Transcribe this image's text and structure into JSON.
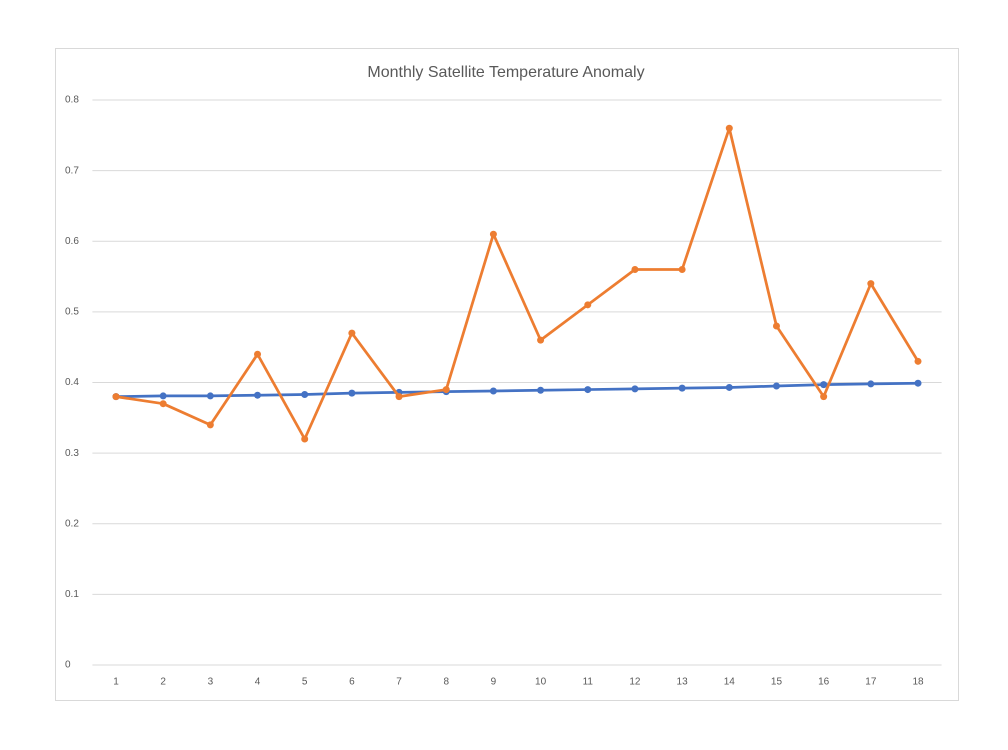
{
  "chart_data": {
    "type": "line",
    "title": "Monthly Satellite Temperature Anomaly",
    "categories": [
      "1",
      "2",
      "3",
      "4",
      "5",
      "6",
      "7",
      "8",
      "9",
      "10",
      "11",
      "12",
      "13",
      "14",
      "15",
      "16",
      "17",
      "18"
    ],
    "series": [
      {
        "color": "#4472c4",
        "values": [
          0.38,
          0.381,
          0.381,
          0.382,
          0.383,
          0.385,
          0.386,
          0.387,
          0.388,
          0.389,
          0.39,
          0.391,
          0.392,
          0.393,
          0.395,
          0.397,
          0.398,
          0.399
        ]
      },
      {
        "color": "#ed7d31",
        "values": [
          0.38,
          0.37,
          0.34,
          0.44,
          0.32,
          0.47,
          0.38,
          0.39,
          0.61,
          0.46,
          0.51,
          0.56,
          0.56,
          0.76,
          0.48,
          0.38,
          0.54,
          0.43
        ]
      }
    ],
    "ylim": [
      0,
      0.8
    ],
    "yticks": [
      0,
      0.1,
      0.2,
      0.3,
      0.4,
      0.5,
      0.6,
      0.7,
      0.8
    ],
    "grid": true
  }
}
